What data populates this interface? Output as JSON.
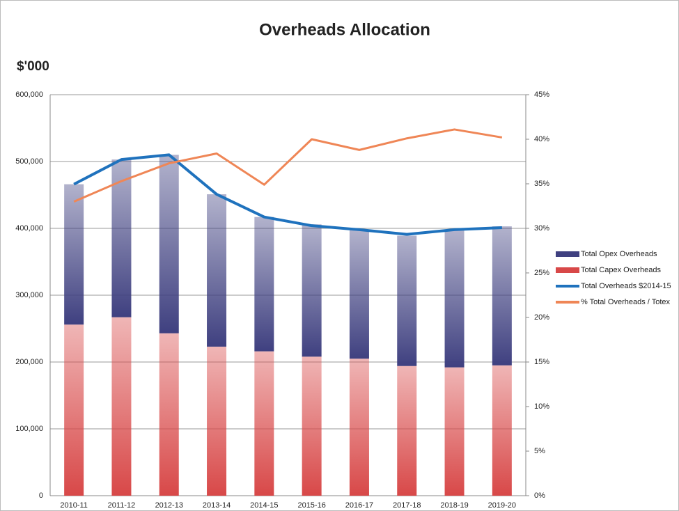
{
  "chart_data": {
    "type": "bar",
    "title": "Overheads Allocation",
    "y_unit_label": "$'000",
    "categories": [
      "2010-11",
      "2011-12",
      "2012-13",
      "2013-14",
      "2014-15",
      "2015-16",
      "2016-17",
      "2017-18",
      "2018-19",
      "2019-20"
    ],
    "series": [
      {
        "name": "Total Opex Overheads",
        "type": "bar",
        "color": "#3f4080",
        "values": [
          210000,
          236000,
          267000,
          228000,
          201000,
          198000,
          193000,
          195000,
          206000,
          208000
        ]
      },
      {
        "name": "Total Capex Overheads",
        "type": "bar",
        "color": "#d84848",
        "values": [
          256000,
          267000,
          243000,
          223000,
          216000,
          208000,
          205000,
          194000,
          192000,
          195000
        ]
      },
      {
        "name": "Total Overheads $2014-15",
        "type": "line",
        "color": "#1f72bd",
        "values": [
          466000,
          503000,
          510000,
          451000,
          417000,
          404000,
          398000,
          391000,
          398000,
          401000
        ]
      },
      {
        "name": "% Total Overheads / Totex",
        "type": "line",
        "axis": "y2",
        "color": "#ef8656",
        "values": [
          33.0,
          35.3,
          37.3,
          38.4,
          34.9,
          40.0,
          38.8,
          40.1,
          41.1,
          40.2
        ]
      }
    ],
    "ylim": [
      0,
      600000
    ],
    "yticks": [
      0,
      {
        "value": 100000,
        "label": "100,000"
      },
      {
        "value": 200000,
        "label": "200,000"
      },
      {
        "value": 300000,
        "label": "300,000"
      },
      {
        "value": 400000,
        "label": "400,000"
      },
      {
        "value": 500000,
        "label": "500,000"
      },
      {
        "value": 600000,
        "label": "600,000"
      }
    ],
    "y2lim": [
      0,
      45
    ],
    "y2ticks": [
      {
        "value": 0,
        "label": "0%"
      },
      {
        "value": 5,
        "label": "5%"
      },
      {
        "value": 10,
        "label": "10%"
      },
      {
        "value": 15,
        "label": "15%"
      },
      {
        "value": 20,
        "label": "20%"
      },
      {
        "value": 25,
        "label": "25%"
      },
      {
        "value": 30,
        "label": "30%"
      },
      {
        "value": 35,
        "label": "35%"
      },
      {
        "value": 40,
        "label": "40%"
      },
      {
        "value": 45,
        "label": "45%"
      }
    ],
    "grid": true,
    "legend": "right"
  }
}
